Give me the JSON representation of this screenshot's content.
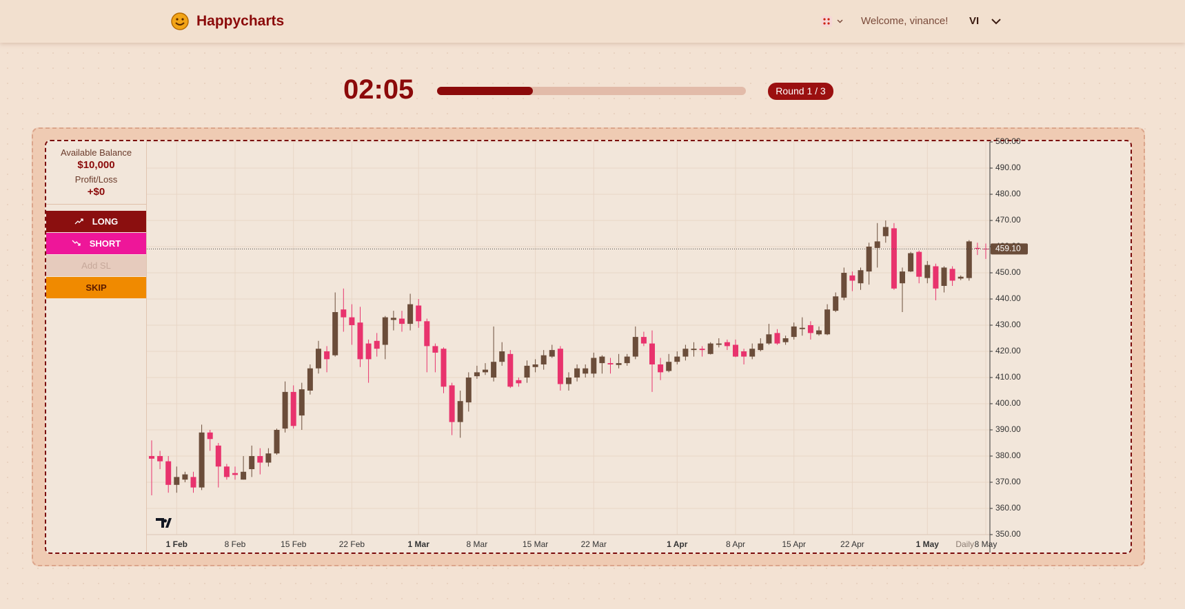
{
  "header": {
    "brand": "Happycharts",
    "welcome": "Welcome, vinance!",
    "user": "VI"
  },
  "timer": {
    "time": "02:05",
    "progress": 0.31,
    "round": "Round 1 / 3"
  },
  "sidebar": {
    "balance_label": "Available Balance",
    "balance": "$10,000",
    "pnl_label": "Profit/Loss",
    "pnl": "+$0",
    "buttons": [
      "LONG",
      "SHORT",
      "Add SL",
      "SKIP"
    ]
  },
  "chart_data": {
    "type": "candlestick",
    "interval": "Daily",
    "x": [
      "29 Jan",
      "30 Jan",
      "31 Jan",
      "1 Feb",
      "2 Feb",
      "3 Feb",
      "4 Feb",
      "5 Feb",
      "6 Feb",
      "7 Feb",
      "8 Feb",
      "9 Feb",
      "10 Feb",
      "11 Feb",
      "12 Feb",
      "13 Feb",
      "14 Feb",
      "15 Feb",
      "16 Feb",
      "17 Feb",
      "18 Feb",
      "19 Feb",
      "20 Feb",
      "21 Feb",
      "22 Feb",
      "23 Feb",
      "24 Feb",
      "25 Feb",
      "26 Feb",
      "27 Feb",
      "28 Feb",
      "29 Feb",
      "1 Mar",
      "2 Mar",
      "3 Mar",
      "4 Mar",
      "5 Mar",
      "6 Mar",
      "7 Mar",
      "8 Mar",
      "9 Mar",
      "10 Mar",
      "11 Mar",
      "12 Mar",
      "13 Mar",
      "14 Mar",
      "15 Mar",
      "16 Mar",
      "17 Mar",
      "18 Mar",
      "19 Mar",
      "20 Mar",
      "21 Mar",
      "22 Mar",
      "23 Mar",
      "24 Mar",
      "25 Mar",
      "26 Mar",
      "27 Mar",
      "28 Mar",
      "29 Mar",
      "30 Mar",
      "31 Mar",
      "1 Apr",
      "2 Apr",
      "3 Apr",
      "4 Apr",
      "5 Apr",
      "6 Apr",
      "7 Apr",
      "8 Apr",
      "9 Apr",
      "10 Apr",
      "11 Apr",
      "12 Apr",
      "13 Apr",
      "14 Apr",
      "15 Apr",
      "16 Apr",
      "17 Apr",
      "18 Apr",
      "19 Apr",
      "20 Apr",
      "21 Apr",
      "22 Apr",
      "23 Apr",
      "24 Apr",
      "25 Apr",
      "26 Apr",
      "27 Apr",
      "28 Apr",
      "29 Apr",
      "30 Apr",
      "1 May",
      "2 May",
      "3 May",
      "4 May",
      "5 May",
      "6 May",
      "7 May",
      "8 May"
    ],
    "open": [
      380,
      380,
      378,
      369,
      371,
      372,
      368,
      389,
      384,
      376,
      373.5,
      371,
      375,
      380,
      377.5,
      381,
      390.5,
      404.5,
      395.5,
      405,
      413.5,
      420,
      418.5,
      436,
      433,
      431,
      423,
      424,
      422.5,
      432,
      432.5,
      430.5,
      437.5,
      431.5,
      422,
      421,
      407,
      393,
      400.5,
      410.5,
      412,
      410,
      416,
      419,
      409,
      410,
      414,
      415,
      418,
      421,
      407.5,
      410,
      411.5,
      411.5,
      415.5,
      415.5,
      414.8,
      415.5,
      418,
      425.5,
      423,
      415,
      412.5,
      416,
      418,
      420.5,
      421,
      419,
      422.5,
      423.5,
      422.5,
      420,
      418,
      420.5,
      423,
      427,
      423.5,
      425.5,
      428.5,
      430,
      426.5,
      426.5,
      435.5,
      440.5,
      449,
      446,
      450.5,
      459.5,
      464,
      467,
      446,
      450.5,
      458,
      448,
      452.5,
      445,
      451.5,
      447.8,
      448,
      459.5,
      459.2
    ],
    "high": [
      386,
      382,
      380,
      376,
      374,
      374,
      392,
      390,
      385,
      377,
      376,
      380,
      384,
      383,
      383,
      390.5,
      408.5,
      407,
      408,
      415,
      424,
      422,
      442.5,
      444,
      438,
      437,
      424.5,
      427,
      433.5,
      435.5,
      435.5,
      442,
      440,
      432.5,
      423,
      421.5,
      408,
      405,
      412,
      414.5,
      415.5,
      429.5,
      423.5,
      420.5,
      410,
      416.5,
      417,
      420.5,
      422.5,
      422,
      412,
      415,
      415,
      419.5,
      418.5,
      417.5,
      419,
      419,
      429.5,
      427.5,
      428,
      417.5,
      419,
      420,
      422.5,
      423.5,
      422,
      423.5,
      425,
      424.5,
      424.5,
      421,
      423,
      425,
      430.5,
      428.5,
      426,
      431,
      433,
      431.5,
      429.5,
      438,
      442.5,
      452,
      450.5,
      452,
      461.5,
      469,
      470,
      469,
      452,
      458,
      458.5,
      454.5,
      453.5,
      452.5,
      452.5,
      449,
      462.5,
      461.5,
      461.2
    ],
    "low": [
      365,
      375,
      366,
      366,
      370,
      366,
      367,
      382,
      368,
      371,
      371,
      371,
      372,
      373,
      376,
      380.5,
      389,
      390.5,
      390,
      403.5,
      411.5,
      412,
      418,
      427.5,
      422.5,
      414,
      408,
      418,
      417,
      428,
      427.5,
      428,
      429,
      412,
      412,
      404,
      388,
      387,
      397,
      409.5,
      411,
      408.5,
      414.5,
      406,
      406.5,
      408,
      412,
      413,
      417.5,
      405,
      405,
      408.5,
      410,
      410,
      411.5,
      411.5,
      413.5,
      414.5,
      417,
      422,
      404.5,
      409,
      412,
      415,
      416.5,
      418,
      418,
      418.8,
      421.5,
      420.5,
      417.8,
      415,
      417,
      420,
      422.5,
      422.5,
      422.5,
      424.5,
      426,
      424.5,
      426,
      426.2,
      435,
      439.5,
      443,
      443.5,
      445.5,
      452,
      461.5,
      443.5,
      435,
      450.3,
      446,
      446,
      439.5,
      442.5,
      445,
      447.2,
      447,
      456.8,
      455.3
    ],
    "close": [
      379,
      378,
      369,
      372,
      373,
      368,
      389,
      386.5,
      376,
      372,
      372.8,
      374,
      380,
      377.5,
      381,
      390,
      404.5,
      391.5,
      405.5,
      413.5,
      421,
      417,
      435,
      433,
      430,
      417,
      417,
      421,
      433,
      432.8,
      430.5,
      438,
      431.5,
      422,
      419.5,
      406.5,
      393,
      401,
      410,
      412,
      413,
      416,
      420,
      406.5,
      407.8,
      414.5,
      415,
      418.5,
      420.5,
      407.5,
      410,
      413.5,
      413.5,
      417.5,
      418,
      415,
      415.5,
      418,
      425.5,
      423,
      415,
      412,
      416,
      418,
      421,
      421,
      420.5,
      423,
      423,
      422,
      418,
      418,
      421,
      423,
      426.5,
      423,
      425,
      429.5,
      429,
      427,
      428,
      436,
      441,
      450,
      447,
      451,
      460,
      462,
      467.5,
      444,
      450.5,
      457.5,
      448.5,
      453,
      444,
      452,
      447,
      448.5,
      462,
      459.2,
      459.1
    ],
    "up_color": "#6b4d3a",
    "down_color": "#e8336d",
    "last_price": {
      "value": 459.1,
      "label": "459.10"
    },
    "ylim": [
      350,
      500
    ],
    "yticks": [
      {
        "value": 350,
        "label": "350.00"
      },
      {
        "value": 360,
        "label": "360.00"
      },
      {
        "value": 370,
        "label": "370.00"
      },
      {
        "value": 380,
        "label": "380.00"
      },
      {
        "value": 390,
        "label": "390.00"
      },
      {
        "value": 400,
        "label": "400.00"
      },
      {
        "value": 410,
        "label": "410.00"
      },
      {
        "value": 420,
        "label": "420.00"
      },
      {
        "value": 430,
        "label": "430.00"
      },
      {
        "value": 440,
        "label": "440.00"
      },
      {
        "value": 450,
        "label": "450.00"
      },
      {
        "value": 460,
        "label": "460.00"
      },
      {
        "value": 470,
        "label": "470.00"
      },
      {
        "value": 480,
        "label": "480.00"
      },
      {
        "value": 490,
        "label": "490.00"
      },
      {
        "value": 500,
        "label": "500.00"
      }
    ],
    "xticks": [
      "1 Feb",
      "8 Feb",
      "15 Feb",
      "22 Feb",
      "1 Mar",
      "8 Mar",
      "15 Mar",
      "22 Mar",
      "1 Apr",
      "8 Apr",
      "15 Apr",
      "22 Apr",
      "1 May",
      "8 May"
    ],
    "grid": true
  }
}
